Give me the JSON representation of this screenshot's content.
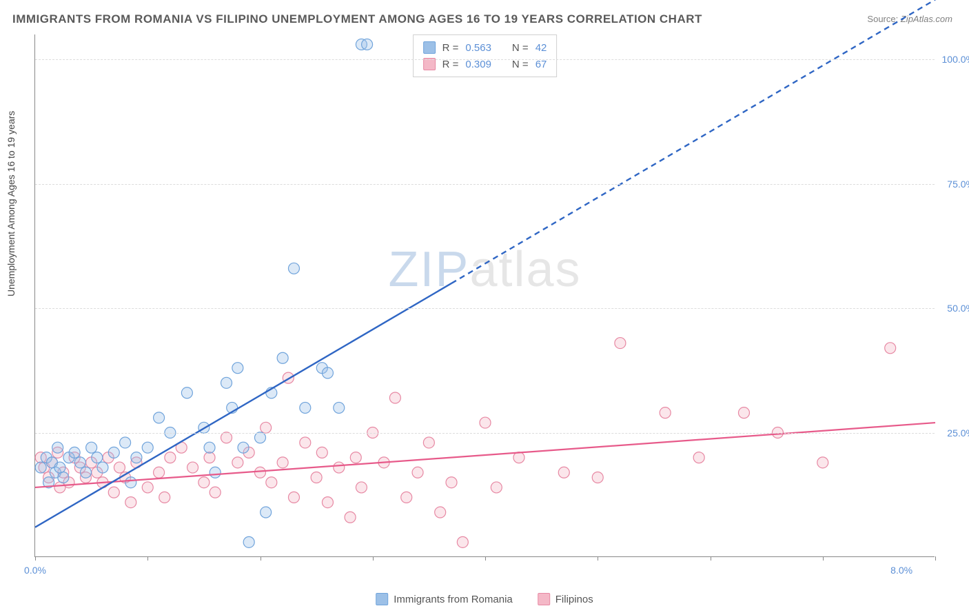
{
  "title": "IMMIGRANTS FROM ROMANIA VS FILIPINO UNEMPLOYMENT AMONG AGES 16 TO 19 YEARS CORRELATION CHART",
  "source_label": "Source:",
  "source_value": "ZipAtlas.com",
  "watermark_a": "ZIP",
  "watermark_b": "atlas",
  "ylabel": "Unemployment Among Ages 16 to 19 years",
  "chart": {
    "type": "scatter",
    "xlim": [
      0,
      8
    ],
    "ylim": [
      0,
      105
    ],
    "x_tick_positions": [
      0,
      1,
      2,
      3,
      4,
      5,
      6,
      7,
      8
    ],
    "x_tick_labels_shown": {
      "0": "0.0%",
      "8": "8.0%"
    },
    "y_grid_positions": [
      25,
      50,
      75,
      100
    ],
    "y_tick_labels": {
      "25": "25.0%",
      "50": "50.0%",
      "75": "75.0%",
      "100": "100.0%"
    },
    "background_color": "#ffffff",
    "grid_color": "#dcdcdc",
    "axis_color": "#888888",
    "tick_label_color": "#5b8fd6",
    "marker_radius": 8,
    "marker_fill_opacity": 0.35,
    "marker_stroke_width": 1.2,
    "series": [
      {
        "name": "Immigrants from Romania",
        "color_fill": "#9cc0e7",
        "color_stroke": "#6fa3db",
        "r_value": "0.563",
        "n_value": "42",
        "trend": {
          "x1": 0.0,
          "y1": 6,
          "x2": 3.7,
          "y2": 55,
          "x2_ext": 8.0,
          "y2_ext": 112,
          "color": "#2f66c4",
          "width": 2.4,
          "dash_after_x": 3.7
        },
        "points": [
          [
            0.05,
            18
          ],
          [
            0.1,
            20
          ],
          [
            0.12,
            15
          ],
          [
            0.15,
            19
          ],
          [
            0.18,
            17
          ],
          [
            0.2,
            22
          ],
          [
            0.22,
            18
          ],
          [
            0.25,
            16
          ],
          [
            0.3,
            20
          ],
          [
            0.35,
            21
          ],
          [
            0.4,
            19
          ],
          [
            0.45,
            17
          ],
          [
            0.5,
            22
          ],
          [
            0.55,
            20
          ],
          [
            0.6,
            18
          ],
          [
            0.7,
            21
          ],
          [
            0.8,
            23
          ],
          [
            0.85,
            15
          ],
          [
            0.9,
            20
          ],
          [
            1.0,
            22
          ],
          [
            1.1,
            28
          ],
          [
            1.2,
            25
          ],
          [
            1.35,
            33
          ],
          [
            1.5,
            26
          ],
          [
            1.55,
            22
          ],
          [
            1.6,
            17
          ],
          [
            1.7,
            35
          ],
          [
            1.75,
            30
          ],
          [
            1.8,
            38
          ],
          [
            1.85,
            22
          ],
          [
            1.9,
            3
          ],
          [
            2.0,
            24
          ],
          [
            2.05,
            9
          ],
          [
            2.1,
            33
          ],
          [
            2.2,
            40
          ],
          [
            2.3,
            58
          ],
          [
            2.4,
            30
          ],
          [
            2.55,
            38
          ],
          [
            2.6,
            37
          ],
          [
            2.7,
            30
          ],
          [
            2.9,
            103
          ],
          [
            2.95,
            103
          ]
        ]
      },
      {
        "name": "Filipinos",
        "color_fill": "#f4b8c7",
        "color_stroke": "#e788a3",
        "r_value": "0.309",
        "n_value": "67",
        "trend": {
          "x1": 0.0,
          "y1": 14,
          "x2": 8.0,
          "y2": 27,
          "color": "#e75a8a",
          "width": 2.2
        },
        "points": [
          [
            0.05,
            20
          ],
          [
            0.08,
            18
          ],
          [
            0.12,
            16
          ],
          [
            0.15,
            19
          ],
          [
            0.2,
            21
          ],
          [
            0.22,
            14
          ],
          [
            0.25,
            17
          ],
          [
            0.3,
            15
          ],
          [
            0.35,
            20
          ],
          [
            0.4,
            18
          ],
          [
            0.45,
            16
          ],
          [
            0.5,
            19
          ],
          [
            0.55,
            17
          ],
          [
            0.6,
            15
          ],
          [
            0.65,
            20
          ],
          [
            0.7,
            13
          ],
          [
            0.75,
            18
          ],
          [
            0.8,
            16
          ],
          [
            0.85,
            11
          ],
          [
            0.9,
            19
          ],
          [
            1.0,
            14
          ],
          [
            1.1,
            17
          ],
          [
            1.15,
            12
          ],
          [
            1.2,
            20
          ],
          [
            1.3,
            22
          ],
          [
            1.4,
            18
          ],
          [
            1.5,
            15
          ],
          [
            1.55,
            20
          ],
          [
            1.6,
            13
          ],
          [
            1.7,
            24
          ],
          [
            1.8,
            19
          ],
          [
            1.9,
            21
          ],
          [
            2.0,
            17
          ],
          [
            2.05,
            26
          ],
          [
            2.1,
            15
          ],
          [
            2.2,
            19
          ],
          [
            2.25,
            36
          ],
          [
            2.3,
            12
          ],
          [
            2.4,
            23
          ],
          [
            2.5,
            16
          ],
          [
            2.55,
            21
          ],
          [
            2.6,
            11
          ],
          [
            2.7,
            18
          ],
          [
            2.8,
            8
          ],
          [
            2.85,
            20
          ],
          [
            2.9,
            14
          ],
          [
            3.0,
            25
          ],
          [
            3.1,
            19
          ],
          [
            3.2,
            32
          ],
          [
            3.3,
            12
          ],
          [
            3.4,
            17
          ],
          [
            3.5,
            23
          ],
          [
            3.6,
            9
          ],
          [
            3.7,
            15
          ],
          [
            3.8,
            3
          ],
          [
            4.0,
            27
          ],
          [
            4.1,
            14
          ],
          [
            4.3,
            20
          ],
          [
            4.7,
            17
          ],
          [
            5.0,
            16
          ],
          [
            5.2,
            43
          ],
          [
            5.6,
            29
          ],
          [
            5.9,
            20
          ],
          [
            6.3,
            29
          ],
          [
            6.6,
            25
          ],
          [
            7.0,
            19
          ],
          [
            7.6,
            42
          ]
        ]
      }
    ]
  },
  "stats_box": {
    "rows": [
      {
        "swatch_fill": "#9cc0e7",
        "swatch_stroke": "#6fa3db",
        "r_label": "R =",
        "r_val": "0.563",
        "n_label": "N =",
        "n_val": "42"
      },
      {
        "swatch_fill": "#f4b8c7",
        "swatch_stroke": "#e788a3",
        "r_label": "R =",
        "r_val": "0.309",
        "n_label": "N =",
        "n_val": "67"
      }
    ]
  },
  "bottom_legend": [
    {
      "swatch_fill": "#9cc0e7",
      "swatch_stroke": "#6fa3db",
      "label": "Immigrants from Romania"
    },
    {
      "swatch_fill": "#f4b8c7",
      "swatch_stroke": "#e788a3",
      "label": "Filipinos"
    }
  ]
}
